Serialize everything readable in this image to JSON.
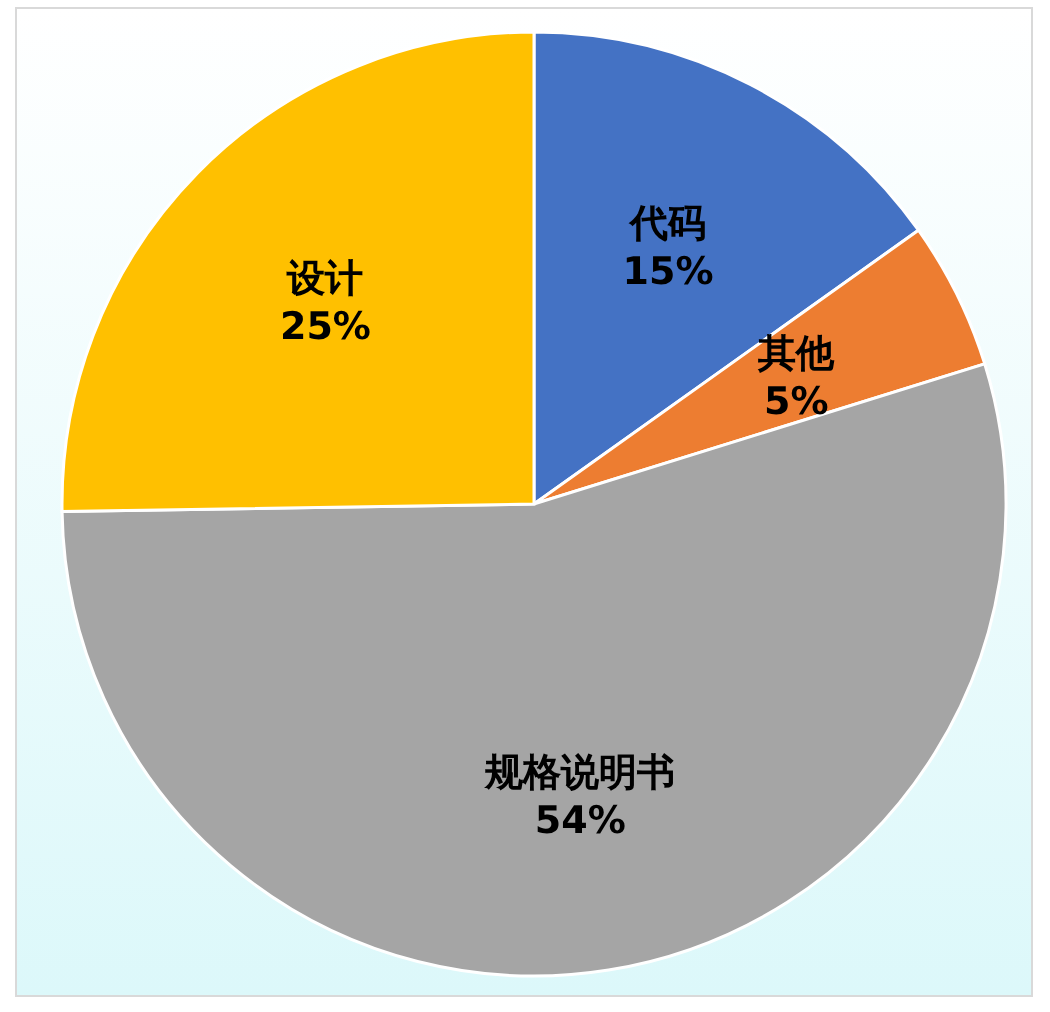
{
  "chart_data": {
    "type": "pie",
    "categories": [
      "代码",
      "其他",
      "规格说明书",
      "设计"
    ],
    "values": [
      15,
      5,
      54,
      25
    ],
    "value_labels": [
      "15%",
      "5%",
      "54%",
      "25%"
    ],
    "colors": [
      "#4472c4",
      "#ed7d31",
      "#a5a5a5",
      "#ffc000"
    ],
    "legend": false
  }
}
